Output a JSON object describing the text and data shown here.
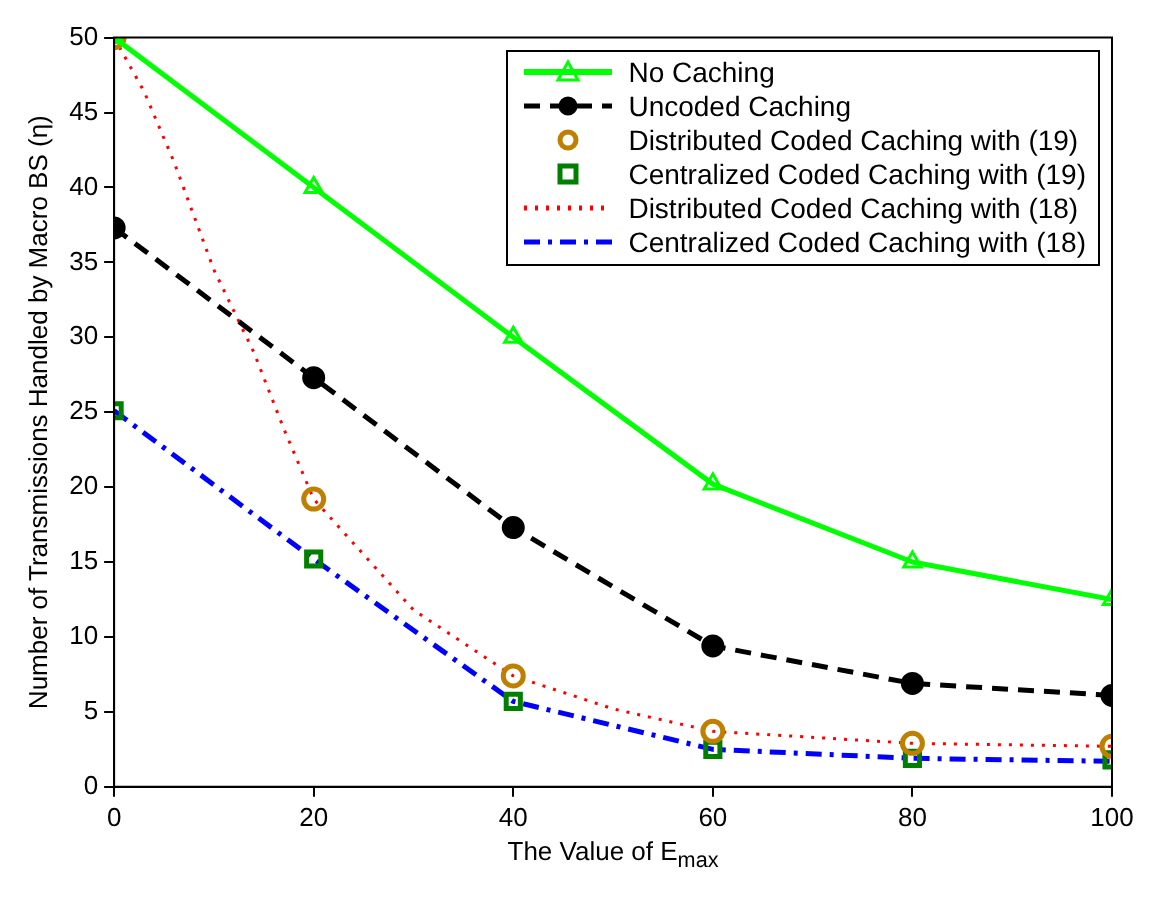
{
  "chart_data": {
    "type": "line",
    "xlabel": "The Value of E$_{max}$",
    "ylabel": "Number of Transmissions Handled by Macro BS (η)",
    "x": [
      0,
      20,
      40,
      60,
      80,
      100
    ],
    "xlim": [
      0,
      100
    ],
    "ylim": [
      0,
      50
    ],
    "xticks": [
      0,
      20,
      40,
      60,
      80,
      100
    ],
    "yticks": [
      0,
      5,
      10,
      15,
      20,
      25,
      30,
      35,
      40,
      45,
      50
    ],
    "grid": false,
    "legend": "top right",
    "series": [
      {
        "name": "No Caching",
        "type": "line",
        "color": "#00ff00",
        "marker": "triangle",
        "line_style": "solid",
        "values": [
          50,
          40,
          30,
          20.2,
          15,
          12.5
        ]
      },
      {
        "name": "Uncoded Caching",
        "type": "line",
        "color": "#000000",
        "marker": "circle",
        "line_style": "dashed",
        "values": [
          37.3,
          27.3,
          17.3,
          9.4,
          6.9,
          6.1
        ]
      },
      {
        "name": "Distributed Coded Caching with (19)",
        "type": "scatter",
        "color": "#bf7f00",
        "marker": "circle",
        "values": [
          50,
          19.2,
          7.4,
          3.7,
          2.9,
          2.7
        ]
      },
      {
        "name": "Centralized Coded Caching with (19)",
        "type": "scatter",
        "color": "#007f00",
        "marker": "square",
        "values": [
          25.1,
          15.2,
          5.7,
          2.5,
          1.9,
          1.8
        ]
      },
      {
        "name": "Distributed Coded Caching with (18)",
        "type": "line",
        "color": "#ff0000",
        "marker": "none",
        "line_style": "dotted",
        "x": [
          0,
          3,
          6,
          10,
          14,
          17,
          20,
          30,
          40,
          50,
          60,
          80,
          100
        ],
        "values": [
          50,
          46.4,
          41.7,
          34.5,
          29,
          23.9,
          19.2,
          11.8,
          7.4,
          5.2,
          3.7,
          2.9,
          2.7
        ]
      },
      {
        "name": "Centralized Coded Caching with (18)",
        "type": "line",
        "color": "#0000ff",
        "marker": "none",
        "line_style": "dashdot",
        "values": [
          25.1,
          15.2,
          5.7,
          2.5,
          1.9,
          1.7
        ]
      }
    ]
  }
}
